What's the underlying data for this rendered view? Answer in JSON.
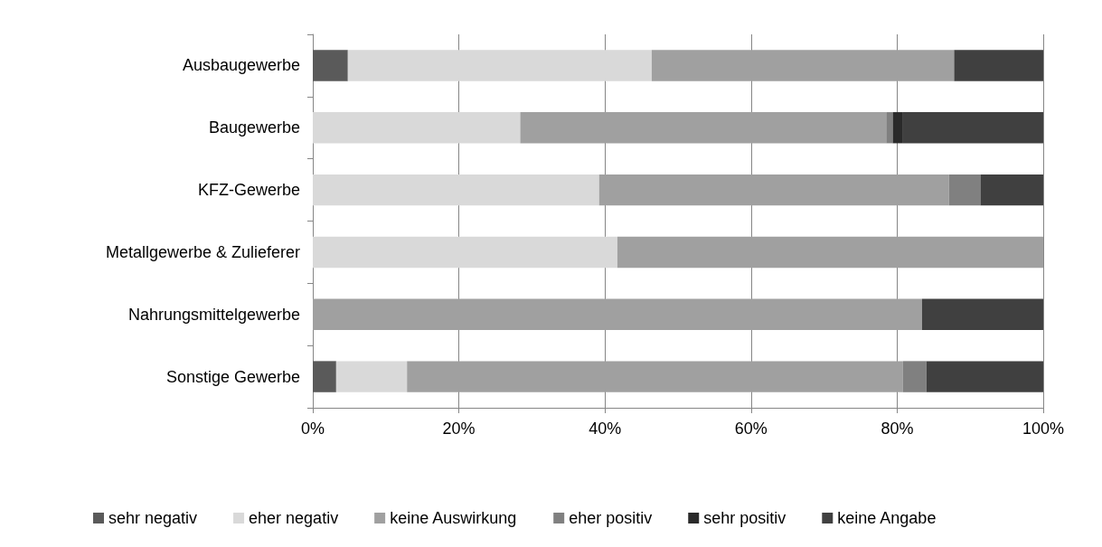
{
  "chart_data": {
    "type": "bar",
    "orientation": "horizontal",
    "stacked": true,
    "categories": [
      "Ausbaugewerbe",
      "Baugewerbe",
      "KFZ-Gewerbe",
      "Metallgewerbe & Zulieferer",
      "Nahrungsmittelgewerbe",
      "Sonstige Gewerbe"
    ],
    "series": [
      {
        "name": "sehr negativ",
        "color": "#5a5a5a",
        "values": [
          4.8,
          0,
          0,
          0,
          0,
          3.2
        ]
      },
      {
        "name": "eher negativ",
        "color": "#d9d9d9",
        "values": [
          41.6,
          28.4,
          39.2,
          41.7,
          0,
          9.7
        ]
      },
      {
        "name": "keine Auswirkung",
        "color": "#a0a0a0",
        "values": [
          41.4,
          50.1,
          47.9,
          58.3,
          83.4,
          67.9
        ]
      },
      {
        "name": "eher positiv",
        "color": "#808080",
        "values": [
          0,
          0.9,
          4.3,
          0,
          0,
          3.2
        ]
      },
      {
        "name": "sehr positiv",
        "color": "#2a2a2a",
        "values": [
          0,
          1.4,
          0,
          0,
          0,
          0
        ]
      },
      {
        "name": "keine Angabe",
        "color": "#404040",
        "values": [
          12.2,
          19.2,
          8.6,
          0,
          16.6,
          16.0
        ]
      }
    ],
    "xlim": [
      0,
      100
    ],
    "xticks": [
      {
        "value": 0,
        "label": "0%"
      },
      {
        "value": 20,
        "label": "20%"
      },
      {
        "value": 40,
        "label": "40%"
      },
      {
        "value": 60,
        "label": "60%"
      },
      {
        "value": 80,
        "label": "80%"
      },
      {
        "value": 100,
        "label": "100%"
      }
    ],
    "grid": "x",
    "legend": "bottom"
  }
}
